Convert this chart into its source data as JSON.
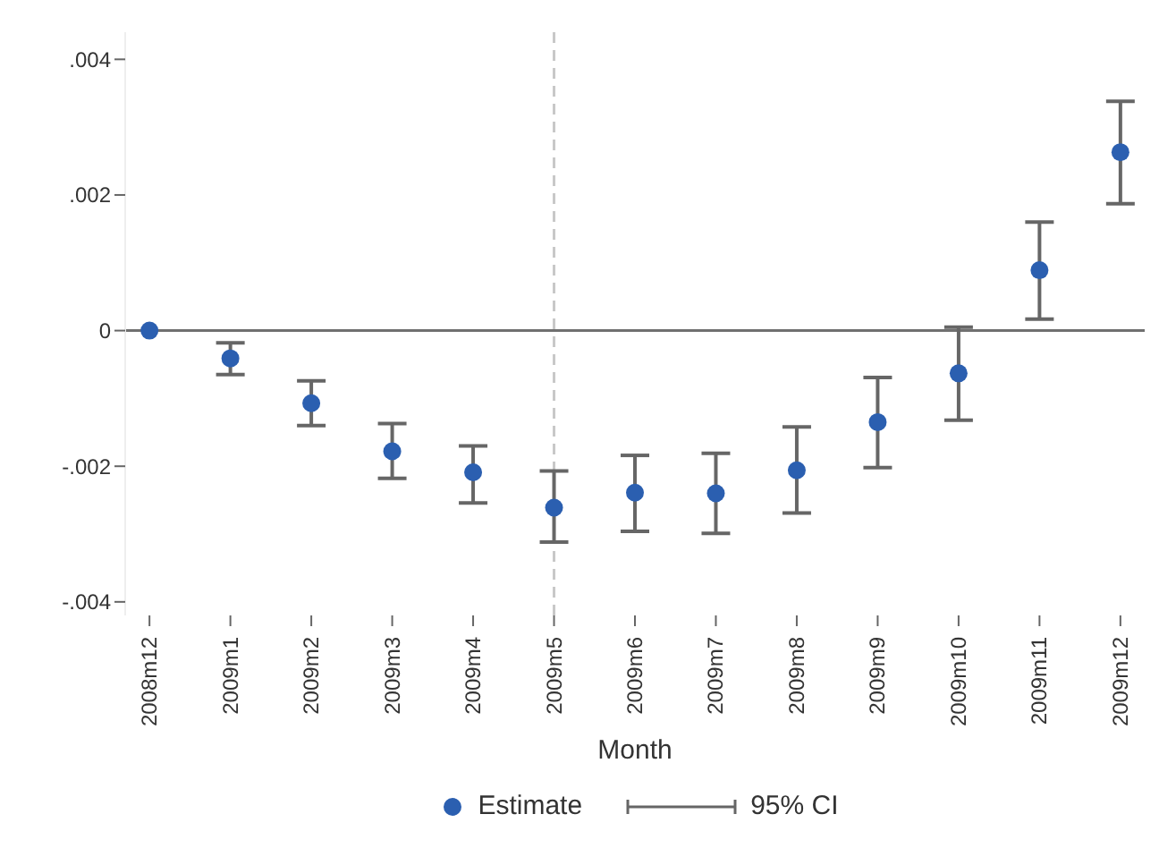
{
  "chart_data": {
    "type": "scatter",
    "xlabel": "Month",
    "categories": [
      "2008m12",
      "2009m1",
      "2009m2",
      "2009m3",
      "2009m4",
      "2009m5",
      "2009m6",
      "2009m7",
      "2009m8",
      "2009m9",
      "2009m10",
      "2009m11",
      "2009m12"
    ],
    "series": [
      {
        "name": "Estimate",
        "color": "#2b5fb0",
        "values": [
          0,
          -0.00041,
          -0.00107,
          -0.00178,
          -0.00209,
          -0.00261,
          -0.00239,
          -0.0024,
          -0.00206,
          -0.00135,
          -0.00063,
          0.00089,
          0.00263
        ],
        "errors": [
          null,
          [
            -0.00065,
            -0.00018
          ],
          [
            -0.0014,
            -0.00074
          ],
          [
            -0.00218,
            -0.00137
          ],
          [
            -0.00254,
            -0.0017
          ],
          [
            -0.00312,
            -0.00207
          ],
          [
            -0.00296,
            -0.00184
          ],
          [
            -0.00299,
            -0.00181
          ],
          [
            -0.00269,
            -0.00142
          ],
          [
            -0.00202,
            -0.00069
          ],
          [
            -0.00132,
            5e-05
          ],
          [
            0.00017,
            0.0016
          ],
          [
            0.00187,
            0.00338
          ]
        ]
      }
    ],
    "ylim": [
      -0.0042,
      0.0044
    ],
    "yticks": [
      {
        "value": -0.004,
        "label": "-.004"
      },
      {
        "value": -0.002,
        "label": "-.002"
      },
      0,
      {
        "value": 0.002,
        "label": ".002"
      },
      {
        "value": 0.004,
        "label": ".004"
      }
    ],
    "ref_lines": [
      {
        "axis": "y",
        "value": 0,
        "color": "#707070",
        "line_style": "solid"
      },
      {
        "axis": "x",
        "value": "2009m5",
        "color": "#c8c8c8",
        "line_style": "dashed"
      }
    ],
    "marker": "circle",
    "grid": false,
    "legend": "bottom",
    "annotations": [
      "95% CI"
    ]
  }
}
